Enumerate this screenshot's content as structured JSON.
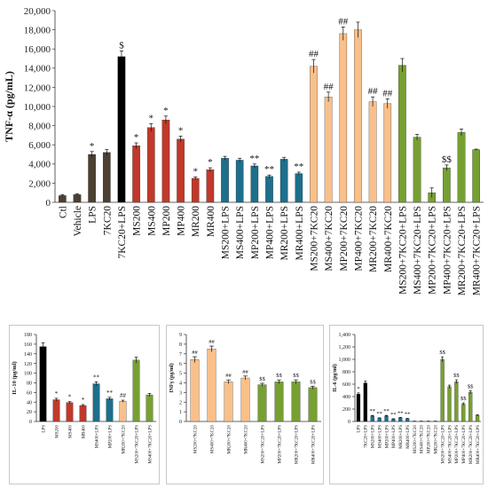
{
  "colors": {
    "dark": "#4b4032",
    "black": "#000000",
    "red": "#c0392b",
    "teal": "#1d6f8c",
    "peach": "#f9c08a",
    "green": "#77a032",
    "axis": "#333333"
  },
  "chart_data": [
    {
      "type": "bar",
      "ylabel": "TNF-α (pg/mL)",
      "ylim": [
        0,
        20000
      ],
      "ytick_labels": [
        "0",
        "2,000",
        "4,000",
        "6,000",
        "8,000",
        "10,000",
        "12,000",
        "14,000",
        "16,000",
        "18,000",
        "20,000"
      ],
      "categories": [
        "Ctl",
        "Vehicle",
        "LPS",
        "7KC20",
        "7KC20+LPS",
        "MS200",
        "MS400",
        "MP200",
        "MP400",
        "MR200",
        "MR400",
        "MS200+LPS",
        "MS400+LPS",
        "MP200+LPS",
        "MP400+LPS",
        "MR200+LPS",
        "MR400+LPS",
        "MS200+7KC20",
        "MS400+7KC20",
        "MP200+7KC20",
        "MP400+7KC20",
        "MR200+7KC20",
        "MR400+7KC20",
        "MS200+7KC20+LPS",
        "MS400+7KC20+LPS",
        "MP200+7KC20+LPS",
        "MP400+7KC20+LPS",
        "MR200+7KC20+LPS",
        "MR400+7KC20+LPS"
      ],
      "values": [
        700,
        800,
        5000,
        5200,
        15200,
        5900,
        7800,
        8600,
        6600,
        2500,
        3400,
        4600,
        4400,
        3800,
        2700,
        4500,
        3000,
        14200,
        11000,
        17600,
        18000,
        10500,
        10300,
        14300,
        6800,
        1000,
        3600,
        7300,
        5500
      ],
      "errors": [
        100,
        100,
        300,
        300,
        600,
        300,
        400,
        400,
        300,
        150,
        200,
        200,
        200,
        200,
        150,
        200,
        150,
        700,
        500,
        700,
        800,
        500,
        500,
        700,
        300,
        500,
        300,
        350,
        50
      ],
      "colors": [
        "dark",
        "dark",
        "dark",
        "dark",
        "black",
        "red",
        "red",
        "red",
        "red",
        "red",
        "red",
        "teal",
        "teal",
        "teal",
        "teal",
        "teal",
        "teal",
        "peach",
        "peach",
        "peach",
        "peach",
        "peach",
        "peach",
        "green",
        "green",
        "green",
        "green",
        "green",
        "green"
      ],
      "annotations": [
        "",
        "",
        "*",
        "",
        "$",
        "*",
        "*",
        "*",
        "*",
        "*",
        "*",
        "",
        "",
        "**",
        "**",
        "",
        "**",
        "##",
        "##",
        "##",
        "",
        "##",
        "##",
        "",
        "",
        "",
        "$$",
        "",
        ""
      ]
    },
    {
      "type": "bar",
      "ylabel": "IL-10 (pg/ml)",
      "ylim": [
        0,
        180
      ],
      "ytick_labels": [
        "0",
        "20",
        "40",
        "60",
        "80",
        "100",
        "120",
        "140",
        "160",
        "180"
      ],
      "categories": [
        "LPS",
        "MS200",
        "MS400",
        "MR400",
        "MS400+LPS",
        "MP200+LPS",
        "MR200+7KC20",
        "MS200+7KC20+LPS",
        "MS400+7KC20+LPS"
      ],
      "values": [
        155,
        45,
        39,
        33,
        78,
        47,
        42,
        127,
        55
      ],
      "errors": [
        8,
        3,
        2,
        2,
        4,
        3,
        2,
        6,
        3
      ],
      "colors": [
        "black",
        "red",
        "red",
        "red",
        "teal",
        "teal",
        "peach",
        "green",
        "green"
      ],
      "annotations": [
        "",
        "*",
        "*",
        "*",
        "**",
        "**",
        "##",
        "",
        ""
      ]
    },
    {
      "type": "bar",
      "ylabel": "INFγ (pg/ml)",
      "ylim": [
        0,
        9
      ],
      "ytick_labels": [
        "0",
        "1",
        "2",
        "3",
        "4",
        "5",
        "6",
        "7",
        "8",
        "9"
      ],
      "categories": [
        "MS200+7KC20",
        "MS400+7KC20",
        "MR200+7KC20",
        "MR400+7KC20",
        "MS200+7KC20+LPS",
        "MP200+7KC20+LPS",
        "MR200+7KC20+LPS",
        "MR400+7KC20+LPS"
      ],
      "values": [
        6.4,
        7.5,
        4.1,
        4.5,
        3.8,
        4.1,
        4.1,
        3.5
      ],
      "errors": [
        0.3,
        0.3,
        0.2,
        0.2,
        0.15,
        0.2,
        0.2,
        0.15
      ],
      "colors": [
        "peach",
        "peach",
        "peach",
        "peach",
        "green",
        "green",
        "green",
        "green"
      ],
      "annotations": [
        "##",
        "##",
        "##",
        "##",
        "$$",
        "$$",
        "$$",
        "$$"
      ]
    },
    {
      "type": "bar",
      "ylabel": "IL-6 (pg/ml)",
      "ylim": [
        0,
        1400
      ],
      "ytick_labels": [
        "0",
        "200",
        "400",
        "600",
        "800",
        "1,000",
        "1,200",
        "1,400"
      ],
      "categories": [
        "LPS",
        "7KC20+LPS",
        "MS200+LPS",
        "MS400+LPS",
        "MP200+LPS",
        "MP400+LPS",
        "MR200+LPS",
        "MR400+LPS",
        "MS200+7KC20",
        "MS400+7KC20",
        "MP200+7KC20",
        "MR200+7KC20",
        "MS200+7KC20+LPS",
        "MS400+7KC20+LPS",
        "MP200+7KC20+LPS",
        "MP400+7KC20+LPS",
        "MR200+7KC20+LPS",
        "MR400+7KC20+LPS"
      ],
      "values": [
        440,
        620,
        90,
        55,
        90,
        40,
        60,
        45,
        5,
        5,
        5,
        5,
        1000,
        560,
        640,
        280,
        470,
        100
      ],
      "errors": [
        20,
        30,
        8,
        5,
        8,
        5,
        6,
        5,
        1,
        1,
        1,
        1,
        40,
        25,
        30,
        20,
        25,
        10
      ],
      "colors": [
        "black",
        "black",
        "teal",
        "teal",
        "teal",
        "teal",
        "teal",
        "teal",
        "peach",
        "peach",
        "peach",
        "peach",
        "green",
        "green",
        "green",
        "green",
        "green",
        "green"
      ],
      "annotations": [
        "*",
        "",
        "**",
        "**",
        "**",
        "**",
        "**",
        "**",
        "",
        "",
        "",
        "",
        "$$",
        "",
        "$$",
        "$$",
        "$$",
        ""
      ]
    }
  ]
}
